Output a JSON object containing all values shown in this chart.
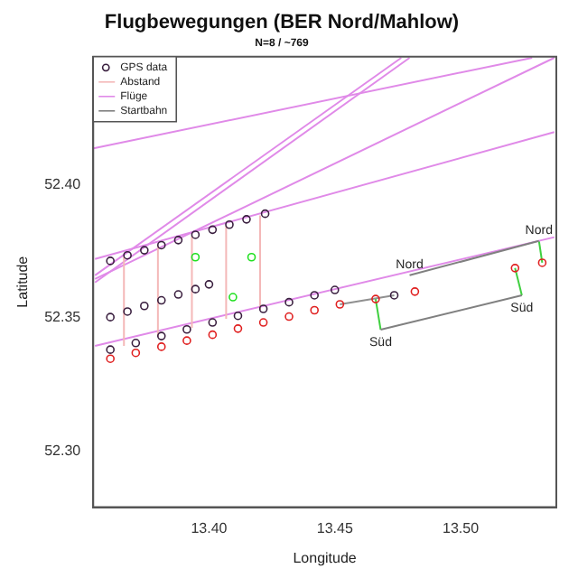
{
  "chart_data": {
    "type": "scatter",
    "title": "Flugbewegungen (BER Nord/Mahlow)",
    "subtitle": "N=8 / ~769",
    "xlabel": "Longitude",
    "ylabel": "Latitude",
    "xlim": [
      13.354,
      13.538
    ],
    "ylim": [
      52.279,
      52.448
    ],
    "xticks": [
      {
        "value": 13.4,
        "label": "13.40"
      },
      {
        "value": 13.45,
        "label": "13.45"
      },
      {
        "value": 13.5,
        "label": "13.50"
      }
    ],
    "yticks": [
      {
        "value": 52.3,
        "label": "52.30"
      },
      {
        "value": 52.35,
        "label": "52.35"
      },
      {
        "value": 52.4,
        "label": "52.40"
      }
    ],
    "grid": false,
    "legend": "top left",
    "series": [
      {
        "name": "GPS data",
        "marker": "circle",
        "color": "#3a1f3f",
        "x": [
          13.3608,
          13.3676,
          13.3743,
          13.3811,
          13.3878,
          13.3946,
          13.4014,
          13.4081,
          13.4149,
          13.4223,
          13.3608,
          13.3676,
          13.3743,
          13.3811,
          13.3878,
          13.3946,
          13.4,
          13.3608,
          13.3709,
          13.3811,
          13.3912,
          13.4014,
          13.4115,
          13.4216,
          13.4318,
          13.4419,
          13.45,
          13.4736
        ],
        "values": [
          52.3714,
          52.3735,
          52.3754,
          52.3773,
          52.3792,
          52.3812,
          52.3831,
          52.385,
          52.387,
          52.3891,
          52.3503,
          52.3524,
          52.3545,
          52.3566,
          52.3588,
          52.3608,
          52.3626,
          52.3381,
          52.3406,
          52.3432,
          52.3457,
          52.3483,
          52.3508,
          52.3534,
          52.3559,
          52.3585,
          52.3605,
          52.3585
        ]
      },
      {
        "name": "Abstand",
        "type": "line",
        "marker": "none",
        "color": "#f4b8b8",
        "x": [
          13.3662,
          13.3662
        ],
        "values": [
          52.3395,
          52.373
        ]
      },
      {
        "name": "Flüge",
        "type": "line",
        "marker": "none",
        "color": "#e08ae8",
        "x": [
          13.3541,
          13.5284
        ],
        "values": [
          52.4136,
          52.4476
        ]
      },
      {
        "name": "Startbahn",
        "type": "line",
        "marker": "none",
        "color": "#808080",
        "x": [
          13.4797,
          13.5311
        ],
        "values": [
          52.366,
          52.3789
        ]
      },
      {
        "type": "line",
        "marker": "none",
        "color": "#f4b8b8",
        "x": [
          13.3797,
          13.3797
        ],
        "values": [
          52.3429,
          52.3769
        ]
      },
      {
        "type": "line",
        "marker": "none",
        "color": "#f4b8b8",
        "x": [
          13.3932,
          13.3932
        ],
        "values": [
          52.3463,
          52.3807
        ]
      },
      {
        "type": "line",
        "marker": "none",
        "color": "#f4b8b8",
        "x": [
          13.4068,
          13.4068
        ],
        "values": [
          52.3497,
          52.3846
        ]
      },
      {
        "type": "line",
        "marker": "none",
        "color": "#f4b8b8",
        "x": [
          13.4203,
          13.4203
        ],
        "values": [
          52.3531,
          52.3885
        ]
      },
      {
        "type": "line",
        "marker": "none",
        "color": "#e08ae8",
        "x": [
          13.3547,
          13.4764
        ],
        "values": [
          52.366,
          52.4476
        ]
      },
      {
        "type": "line",
        "marker": "none",
        "color": "#e08ae8",
        "x": [
          13.3547,
          13.4797
        ],
        "values": [
          52.3633,
          52.4476
        ]
      },
      {
        "type": "line",
        "marker": "none",
        "color": "#e08ae8",
        "x": [
          13.3547,
          13.5372
        ],
        "values": [
          52.3646,
          52.4476
        ]
      },
      {
        "type": "line",
        "marker": "none",
        "color": "#e08ae8",
        "x": [
          13.3547,
          13.5372
        ],
        "values": [
          52.3721,
          52.4197
        ]
      },
      {
        "type": "line",
        "marker": "none",
        "color": "#e08ae8",
        "x": [
          13.3547,
          13.5372
        ],
        "values": [
          52.3395,
          52.3803
        ]
      },
      {
        "type": "line",
        "marker": "none",
        "color": "#808080",
        "x": [
          13.4682,
          13.5243
        ],
        "values": [
          52.3456,
          52.3585
        ]
      },
      {
        "type": "line",
        "marker": "none",
        "color": "#40d040",
        "x": [
          13.4662,
          13.4682
        ],
        "values": [
          52.3571,
          52.3456
        ]
      },
      {
        "type": "line",
        "marker": "none",
        "color": "#40d040",
        "x": [
          13.5216,
          13.5243
        ],
        "values": [
          52.3687,
          52.3585
        ]
      },
      {
        "type": "line",
        "marker": "none",
        "color": "#40d040",
        "x": [
          13.5324,
          13.5311
        ],
        "values": [
          52.3707,
          52.3789
        ]
      },
      {
        "type": "line",
        "marker": "none",
        "color": "#909090",
        "x": [
          13.452,
          13.4736
        ],
        "values": [
          52.3551,
          52.3585
        ]
      },
      {
        "marker": "circle",
        "color": "#e02020",
        "x": [
          13.3608,
          13.3709,
          13.3811,
          13.3912,
          13.4014,
          13.4115,
          13.4216,
          13.4318,
          13.4419,
          13.452,
          13.4662,
          13.4818,
          13.5216,
          13.5324
        ],
        "values": [
          52.3347,
          52.3369,
          52.3392,
          52.3415,
          52.3437,
          52.346,
          52.3483,
          52.3505,
          52.3529,
          52.3551,
          52.3571,
          52.3599,
          52.3687,
          52.3707
        ]
      },
      {
        "marker": "circle",
        "color": "#20e020",
        "x": [
          13.3946,
          13.4169,
          13.4095
        ],
        "values": [
          52.3728,
          52.3728,
          52.3578
        ]
      }
    ],
    "annotations": [
      {
        "text": "Nord",
        "x": 13.4797,
        "y": 52.366
      },
      {
        "text": "Nord",
        "x": 13.5311,
        "y": 52.3789
      },
      {
        "text": "Süd",
        "x": 13.4682,
        "y": 52.3456
      },
      {
        "text": "Süd",
        "x": 13.5243,
        "y": 52.3585
      }
    ]
  }
}
